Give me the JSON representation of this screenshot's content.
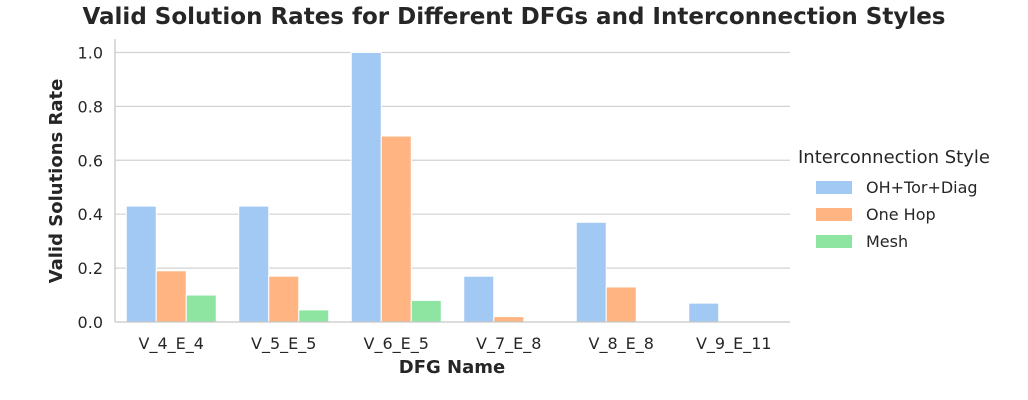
{
  "chart_data": {
    "type": "bar",
    "title": "Valid Solution Rates for Different DFGs and Interconnection Styles",
    "xlabel": "DFG Name",
    "ylabel": "Valid Solutions Rate",
    "ylim": [
      0,
      1.05
    ],
    "yticks": [
      "0.0",
      "0.2",
      "0.4",
      "0.6",
      "0.8",
      "1.0"
    ],
    "grid": "horizontal",
    "legend_position": "right",
    "legend_title": "Interconnection Style",
    "categories": [
      "V_4_E_4",
      "V_5_E_5",
      "V_6_E_5",
      "V_7_E_8",
      "V_8_E_8",
      "V_9_E_11"
    ],
    "series": [
      {
        "name": "OH+Tor+Diag",
        "color": "#a1c9f4",
        "values": [
          0.43,
          0.43,
          1.0,
          0.17,
          0.37,
          0.07
        ]
      },
      {
        "name": "One Hop",
        "color": "#ffb482",
        "values": [
          0.19,
          0.17,
          0.69,
          0.02,
          0.13,
          0.0
        ]
      },
      {
        "name": "Mesh",
        "color": "#8de5a1",
        "values": [
          0.1,
          0.045,
          0.08,
          0.0,
          0.0,
          0.0
        ]
      }
    ]
  }
}
